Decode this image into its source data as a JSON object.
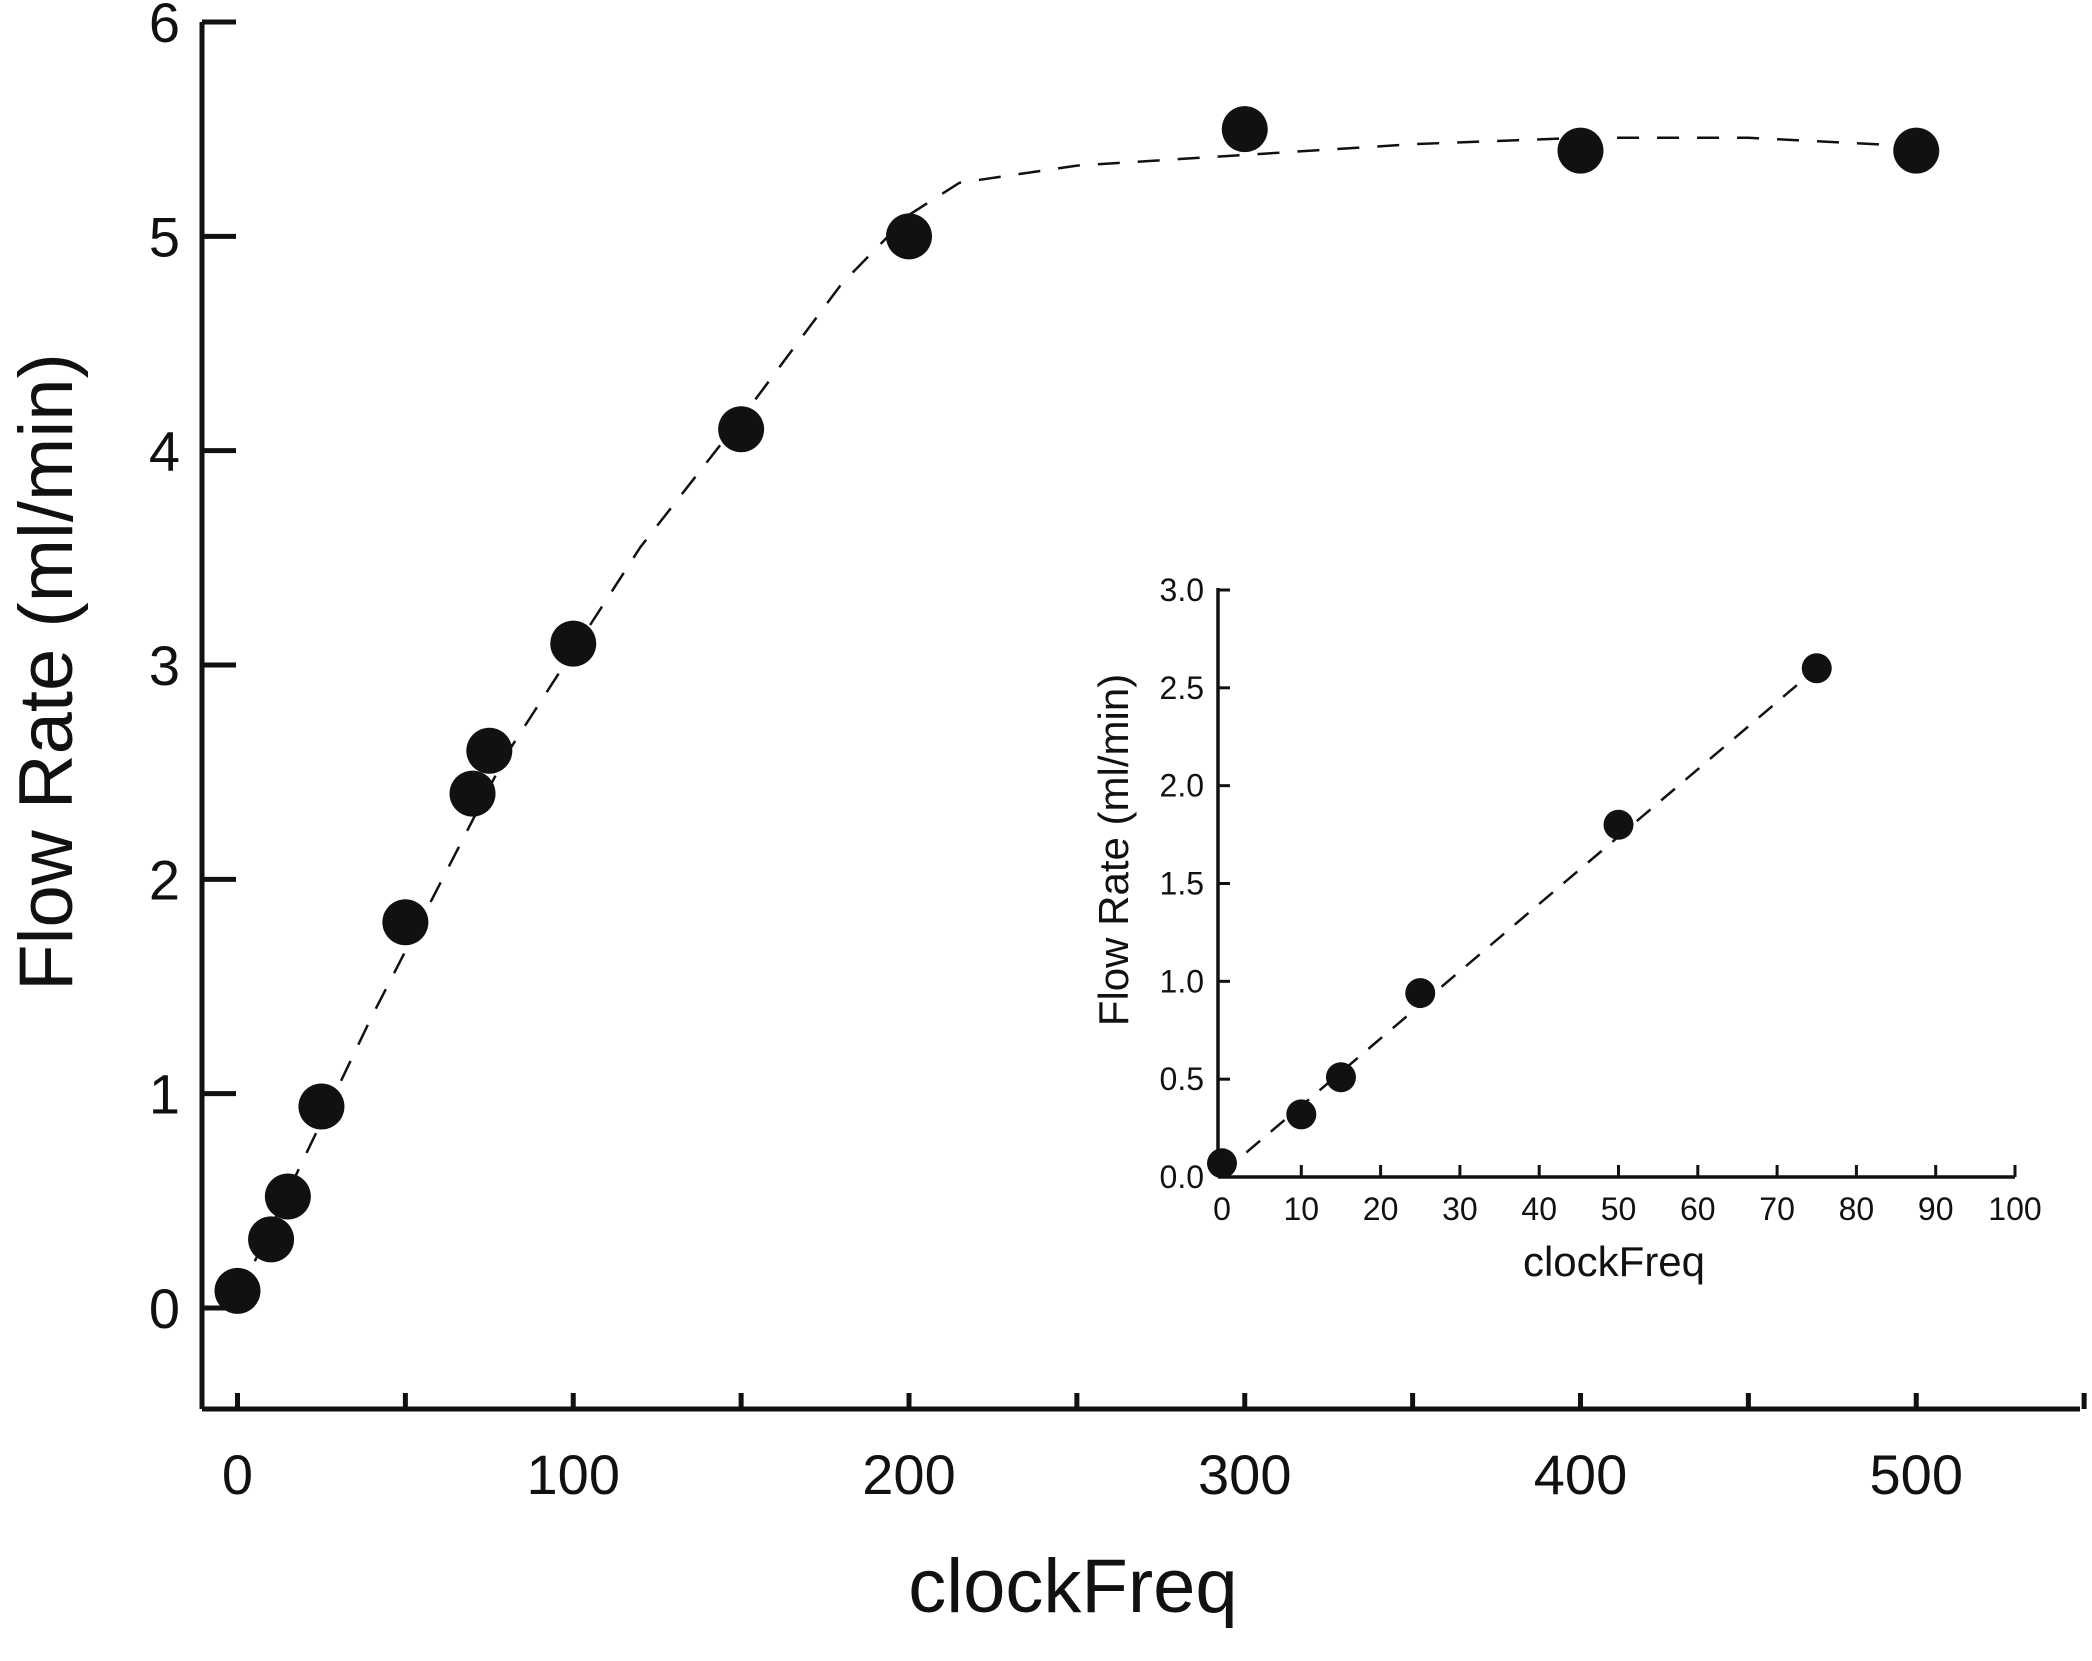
{
  "chart_data": [
    {
      "id": "main",
      "type": "scatter",
      "xlabel": "clockFreq",
      "ylabel": "Flow Rate (ml/min)",
      "xlim": [
        -10,
        550
      ],
      "ylim": [
        -0.45,
        6
      ],
      "xticks_labeled": [
        0,
        100,
        200,
        300,
        400,
        500
      ],
      "xticks_minor": [
        50,
        150,
        250,
        350,
        450,
        550
      ],
      "yticks": [
        0,
        1,
        2,
        3,
        4,
        5,
        6
      ],
      "points": [
        {
          "x": 0,
          "y": 0.08
        },
        {
          "x": 10,
          "y": 0.32
        },
        {
          "x": 15,
          "y": 0.52
        },
        {
          "x": 25,
          "y": 0.94
        },
        {
          "x": 50,
          "y": 1.8
        },
        {
          "x": 70,
          "y": 2.4
        },
        {
          "x": 75,
          "y": 2.6
        },
        {
          "x": 100,
          "y": 3.1
        },
        {
          "x": 150,
          "y": 4.1
        },
        {
          "x": 200,
          "y": 5.0
        },
        {
          "x": 300,
          "y": 5.5
        },
        {
          "x": 400,
          "y": 5.4
        },
        {
          "x": 500,
          "y": 5.4
        }
      ],
      "fit_line": {
        "style": "dashed",
        "points": [
          {
            "x": 0,
            "y": 0.05
          },
          {
            "x": 40,
            "y": 1.36
          },
          {
            "x": 80,
            "y": 2.58
          },
          {
            "x": 120,
            "y": 3.55
          },
          {
            "x": 150,
            "y": 4.15
          },
          {
            "x": 180,
            "y": 4.78
          },
          {
            "x": 200,
            "y": 5.1
          },
          {
            "x": 215,
            "y": 5.25
          },
          {
            "x": 250,
            "y": 5.33
          },
          {
            "x": 300,
            "y": 5.38
          },
          {
            "x": 350,
            "y": 5.43
          },
          {
            "x": 400,
            "y": 5.46
          },
          {
            "x": 450,
            "y": 5.46
          },
          {
            "x": 500,
            "y": 5.42
          }
        ]
      }
    },
    {
      "id": "inset",
      "type": "scatter",
      "xlabel": "clockFreq",
      "ylabel": "Flow Rate (ml/min)",
      "xlim": [
        0,
        100
      ],
      "ylim": [
        0,
        3.0
      ],
      "xticks": [
        0,
        10,
        20,
        30,
        40,
        50,
        60,
        70,
        80,
        90,
        100
      ],
      "yticks": [
        "0.0",
        "0.5",
        "1.0",
        "1.5",
        "2.0",
        "2.5",
        "3.0"
      ],
      "points": [
        {
          "x": 0,
          "y": 0.07
        },
        {
          "x": 10,
          "y": 0.32
        },
        {
          "x": 15,
          "y": 0.51
        },
        {
          "x": 25,
          "y": 0.94
        },
        {
          "x": 50,
          "y": 1.8
        },
        {
          "x": 75,
          "y": 2.6
        }
      ],
      "fit_line": {
        "style": "dashed",
        "points": [
          {
            "x": 0,
            "y": 0.02
          },
          {
            "x": 75,
            "y": 2.6
          }
        ]
      }
    }
  ]
}
